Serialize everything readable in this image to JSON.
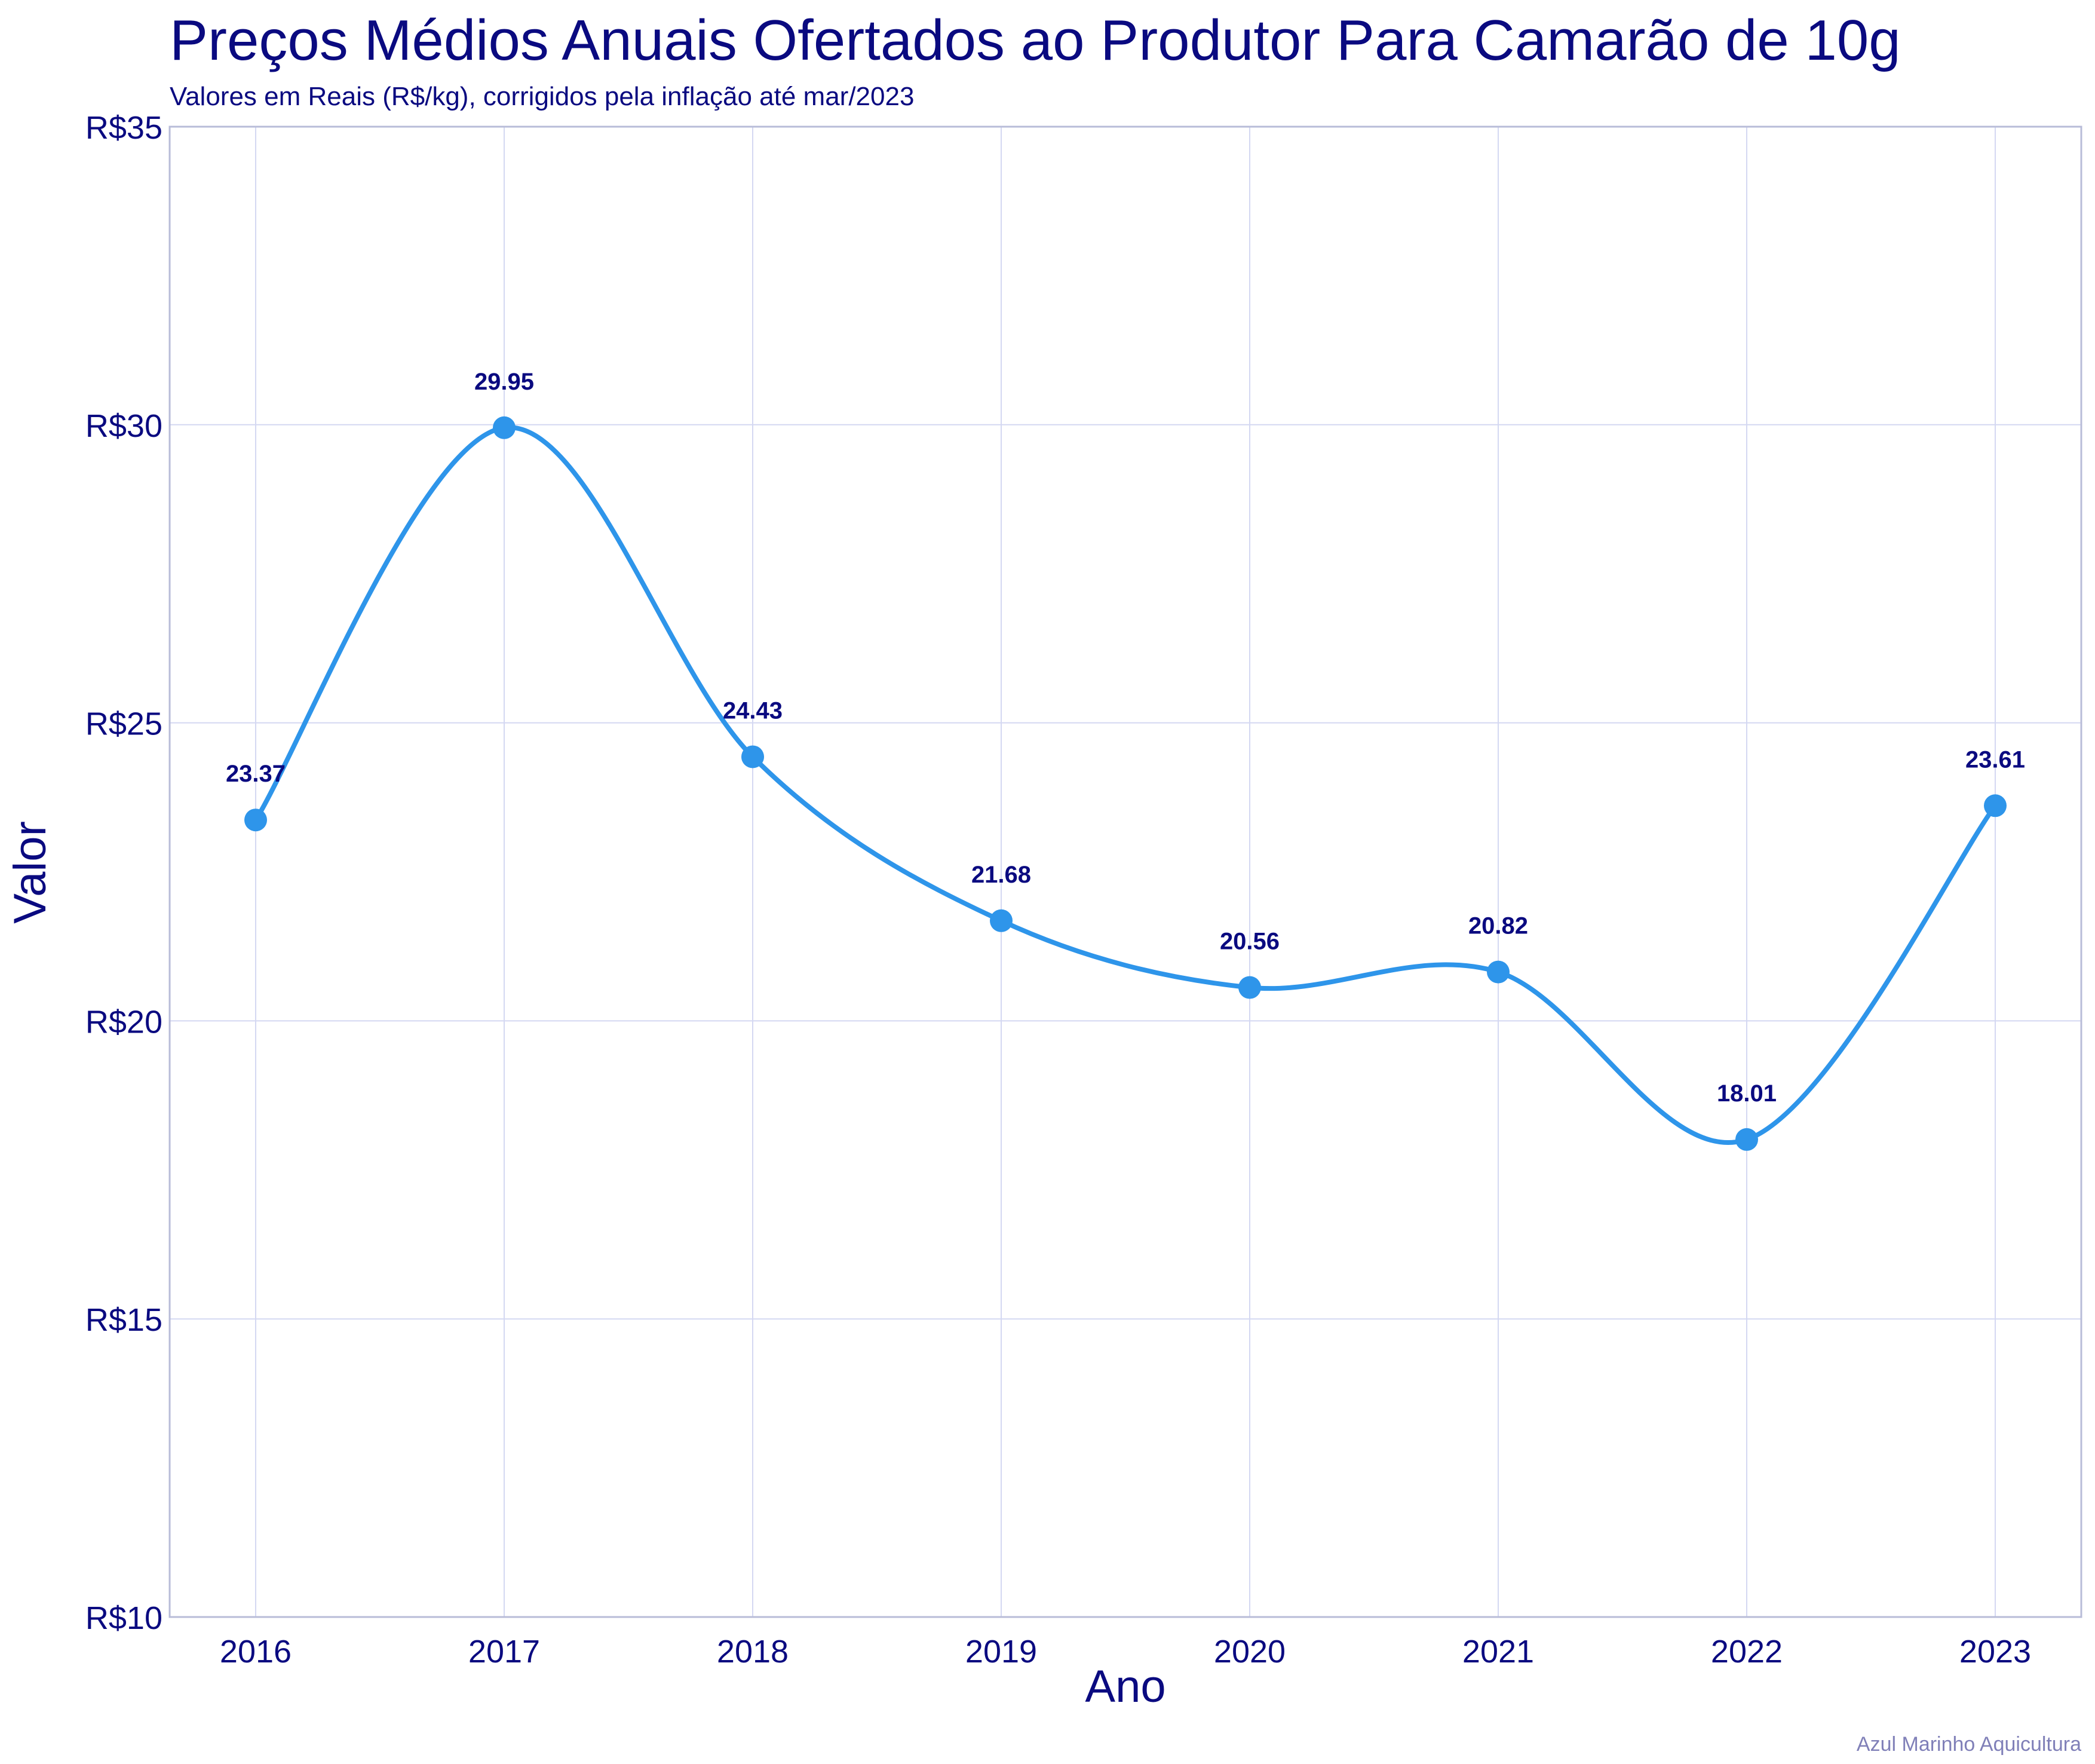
{
  "chart_data": {
    "type": "line",
    "title": "Preços Médios Anuais Ofertados ao Produtor Para Camarão de 10g",
    "subtitle": "Valores em Reais (R$/kg), corrigidos pela inflação até mar/2023",
    "xlabel": "Ano",
    "ylabel": "Valor",
    "x": [
      "2016",
      "2017",
      "2018",
      "2019",
      "2020",
      "2021",
      "2022",
      "2023"
    ],
    "series": [
      {
        "values": [
          23.37,
          29.95,
          24.43,
          21.68,
          20.56,
          20.82,
          18.01,
          23.61
        ]
      }
    ],
    "data_labels": [
      "23.37",
      "29.95",
      "24.43",
      "21.68",
      "20.56",
      "20.82",
      "18.01",
      "23.61"
    ],
    "ylim": [
      10,
      35
    ],
    "yticks": [
      10,
      15,
      20,
      25,
      30,
      35
    ],
    "ytick_labels": [
      "R$10",
      "R$15",
      "R$20",
      "R$25",
      "R$30",
      "R$35"
    ],
    "grid": true,
    "smooth": true,
    "colors": {
      "line": "#2e95ea",
      "marker": "#2e95ea",
      "text": "#0a0a80",
      "grid": "#d4d8f2",
      "caption": "#8080b8"
    },
    "caption": "Azul Marinho Aquicultura"
  }
}
